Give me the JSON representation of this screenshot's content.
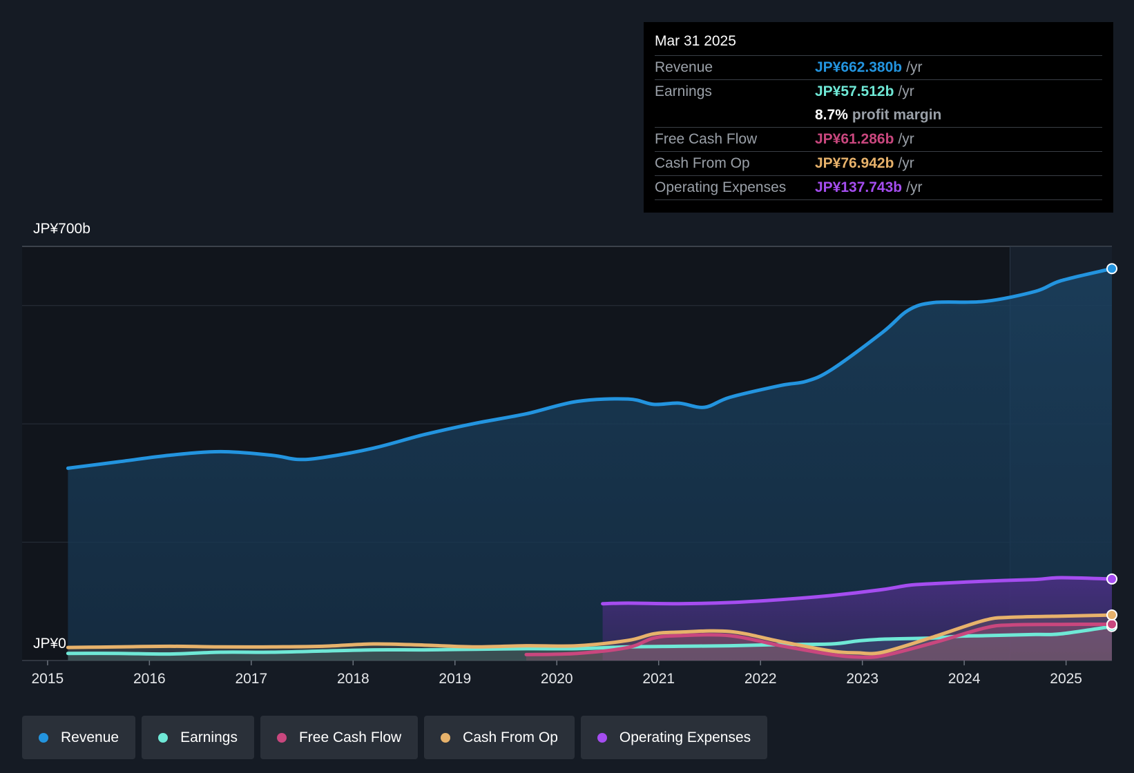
{
  "tooltip": {
    "date": "Mar 31 2025",
    "rows": [
      {
        "label": "Revenue",
        "value": "JP¥662.380b",
        "unit": "/yr",
        "color": "#2394df"
      },
      {
        "label": "Earnings",
        "value": "JP¥57.512b",
        "unit": "/yr",
        "color": "#6fe8d6"
      },
      {
        "label": "",
        "value": "8.7%",
        "unit": "profit margin",
        "color": "#ffffff"
      },
      {
        "label": "Free Cash Flow",
        "value": "JP¥61.286b",
        "unit": "/yr",
        "color": "#c9477e"
      },
      {
        "label": "Cash From Op",
        "value": "JP¥76.942b",
        "unit": "/yr",
        "color": "#e7b26b"
      },
      {
        "label": "Operating Expenses",
        "value": "JP¥137.743b",
        "unit": "/yr",
        "color": "#a54df0"
      }
    ]
  },
  "chart_data": {
    "type": "area",
    "title": "",
    "y_top_label": "JP¥700b",
    "y_bottom_label": "JP¥0",
    "ylim": [
      0,
      700
    ],
    "xlim": [
      2014.55,
      2025.25
    ],
    "x_ticks": [
      "2015",
      "2016",
      "2017",
      "2018",
      "2019",
      "2020",
      "2021",
      "2022",
      "2023",
      "2024",
      "2025"
    ],
    "x_tick_values": [
      2014.8,
      2015.8,
      2016.8,
      2017.8,
      2018.8,
      2019.8,
      2020.8,
      2021.8,
      2022.8,
      2023.8,
      2024.8
    ],
    "forecast_start": 2024.25,
    "series": [
      {
        "name": "Revenue",
        "color": "#2394df",
        "fill": true,
        "points": [
          [
            2015.0,
            325
          ],
          [
            2015.5,
            336
          ],
          [
            2016.0,
            347
          ],
          [
            2016.5,
            353
          ],
          [
            2017.0,
            347
          ],
          [
            2017.25,
            340
          ],
          [
            2017.5,
            343
          ],
          [
            2018.0,
            359
          ],
          [
            2018.5,
            382
          ],
          [
            2019.0,
            401
          ],
          [
            2019.5,
            417
          ],
          [
            2020.0,
            438
          ],
          [
            2020.5,
            442
          ],
          [
            2020.75,
            433
          ],
          [
            2021.0,
            435
          ],
          [
            2021.25,
            428
          ],
          [
            2021.5,
            445
          ],
          [
            2022.0,
            465
          ],
          [
            2022.25,
            472
          ],
          [
            2022.5,
            492
          ],
          [
            2023.0,
            555
          ],
          [
            2023.25,
            592
          ],
          [
            2023.5,
            605
          ],
          [
            2024.0,
            607
          ],
          [
            2024.5,
            624
          ],
          [
            2024.75,
            642
          ],
          [
            2025.25,
            662.38
          ]
        ]
      },
      {
        "name": "Operating Expenses",
        "color": "#a54df0",
        "fill": true,
        "points": [
          [
            2020.25,
            96
          ],
          [
            2020.5,
            97
          ],
          [
            2021.0,
            96
          ],
          [
            2021.5,
            98
          ],
          [
            2022.0,
            103
          ],
          [
            2022.5,
            110
          ],
          [
            2023.0,
            120
          ],
          [
            2023.25,
            127
          ],
          [
            2023.5,
            130
          ],
          [
            2024.0,
            134
          ],
          [
            2024.5,
            137
          ],
          [
            2024.75,
            140
          ],
          [
            2025.25,
            137.74
          ]
        ]
      },
      {
        "name": "Earnings",
        "color": "#6fe8d6",
        "fill": true,
        "points": [
          [
            2015.0,
            12
          ],
          [
            2015.5,
            12
          ],
          [
            2016.0,
            11
          ],
          [
            2016.5,
            14
          ],
          [
            2017.0,
            14
          ],
          [
            2017.5,
            16
          ],
          [
            2018.0,
            18
          ],
          [
            2018.5,
            18
          ],
          [
            2019.0,
            19
          ],
          [
            2019.5,
            20
          ],
          [
            2020.0,
            20
          ],
          [
            2020.5,
            23
          ],
          [
            2021.0,
            24
          ],
          [
            2021.5,
            25
          ],
          [
            2022.0,
            27
          ],
          [
            2022.5,
            28
          ],
          [
            2022.75,
            33
          ],
          [
            2023.0,
            36
          ],
          [
            2023.5,
            38
          ],
          [
            2023.75,
            41
          ],
          [
            2024.0,
            42
          ],
          [
            2024.5,
            44
          ],
          [
            2024.75,
            45
          ],
          [
            2025.25,
            57.51
          ]
        ]
      },
      {
        "name": "Free Cash Flow",
        "color": "#c9477e",
        "fill": true,
        "points": [
          [
            2019.5,
            10
          ],
          [
            2020.0,
            12
          ],
          [
            2020.5,
            22
          ],
          [
            2020.75,
            38
          ],
          [
            2021.0,
            42
          ],
          [
            2021.5,
            42
          ],
          [
            2022.0,
            25
          ],
          [
            2022.5,
            10
          ],
          [
            2022.75,
            6
          ],
          [
            2023.0,
            8
          ],
          [
            2023.5,
            30
          ],
          [
            2024.0,
            55
          ],
          [
            2024.25,
            60
          ],
          [
            2024.75,
            61
          ],
          [
            2025.25,
            61.29
          ]
        ]
      },
      {
        "name": "Cash From Op",
        "color": "#e7b26b",
        "fill": true,
        "points": [
          [
            2015.0,
            22
          ],
          [
            2015.5,
            23
          ],
          [
            2016.0,
            24
          ],
          [
            2016.5,
            23
          ],
          [
            2017.0,
            23
          ],
          [
            2017.5,
            24
          ],
          [
            2018.0,
            28
          ],
          [
            2018.5,
            26
          ],
          [
            2019.0,
            23
          ],
          [
            2019.5,
            25
          ],
          [
            2020.0,
            25
          ],
          [
            2020.5,
            34
          ],
          [
            2020.75,
            45
          ],
          [
            2021.0,
            48
          ],
          [
            2021.5,
            49
          ],
          [
            2022.0,
            32
          ],
          [
            2022.5,
            16
          ],
          [
            2022.75,
            13
          ],
          [
            2023.0,
            14
          ],
          [
            2023.5,
            40
          ],
          [
            2024.0,
            68
          ],
          [
            2024.25,
            73
          ],
          [
            2024.75,
            75
          ],
          [
            2025.25,
            76.94
          ]
        ]
      }
    ]
  },
  "legend": [
    {
      "label": "Revenue",
      "color": "#2394df"
    },
    {
      "label": "Earnings",
      "color": "#6fe8d6"
    },
    {
      "label": "Free Cash Flow",
      "color": "#c9477e"
    },
    {
      "label": "Cash From Op",
      "color": "#e7b26b"
    },
    {
      "label": "Operating Expenses",
      "color": "#a54df0"
    }
  ]
}
